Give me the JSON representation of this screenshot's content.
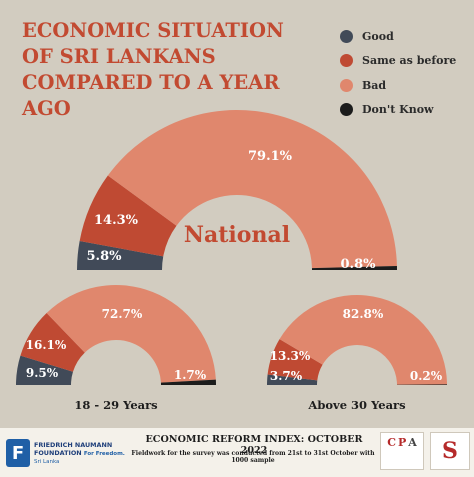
{
  "title": "ECONOMIC SITUATION OF SRI LANKANS COMPARED TO A YEAR AGO",
  "legend": [
    {
      "label": "Good",
      "color": "#414a58"
    },
    {
      "label": "Same as before",
      "color": "#bf4a33"
    },
    {
      "label": "Bad",
      "color": "#e0876d"
    },
    {
      "label": "Don't Know",
      "color": "#1c1c1c"
    }
  ],
  "chart_data": [
    {
      "type": "pie",
      "title": "National",
      "labels": [
        "Good",
        "Same as before",
        "Bad",
        "Don't Know"
      ],
      "values": [
        5.8,
        14.3,
        79.1,
        0.8
      ],
      "value_labels": [
        "5.8%",
        "14.3%",
        "79.1%",
        "0.8%"
      ]
    },
    {
      "type": "pie",
      "title": "18 - 29 Years",
      "labels": [
        "Good",
        "Same as before",
        "Bad",
        "Don't Know"
      ],
      "values": [
        9.5,
        16.1,
        72.7,
        1.7
      ],
      "value_labels": [
        "9.5%",
        "16.1%",
        "72.7%",
        "1.7%"
      ]
    },
    {
      "type": "pie",
      "title": "Above 30 Years",
      "labels": [
        "Good",
        "Same as before",
        "Bad",
        "Don't Know"
      ],
      "values": [
        3.7,
        13.3,
        82.8,
        0.2
      ],
      "value_labels": [
        "3.7%",
        "13.3%",
        "82.8%",
        "0.2%"
      ]
    }
  ],
  "footer": {
    "title": "ECONOMIC REFORM INDEX: OCTOBER 2022",
    "note": "Fieldwork for the survey was conducted from 21st to 31st October with 1000 sample",
    "fnf_badge": "F",
    "fnf_name_1": "FRIEDRICH NAUMANN",
    "fnf_name_2": "FOUNDATION",
    "fnf_tagline": "For Freedom.",
    "fnf_country": "Sri Lanka",
    "cpa_c": "C",
    "cpa_p": "P",
    "cpa_a": "A",
    "s_letter": "S"
  }
}
